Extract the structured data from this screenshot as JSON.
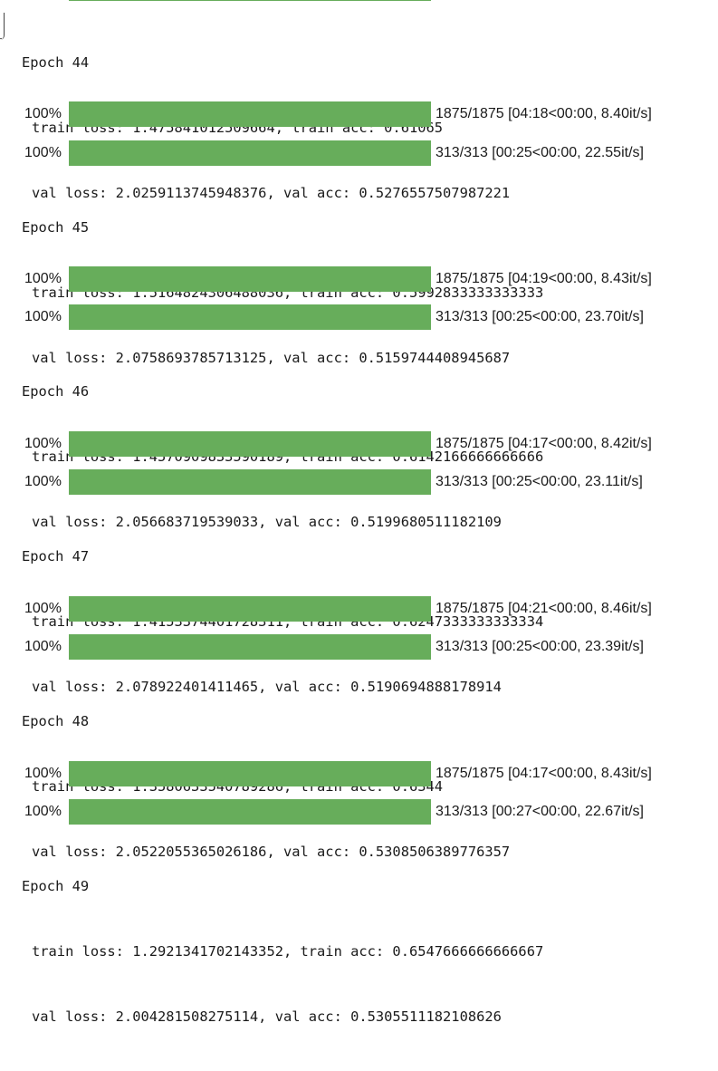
{
  "top_bar": {
    "progress": 1.0
  },
  "epochs": [
    {
      "title": "Epoch 44",
      "train": "train loss: 1.475841012509664, train acc: 0.61065",
      "val": "val loss: 2.0259113745948376, val acc: 0.5276557507987221"
    },
    {
      "title": "Epoch 45",
      "train": "train loss: 1.5164824306488036, train acc: 0.5992833333333333",
      "val": "val loss: 2.0758693785713125, val acc: 0.5159744408945687"
    },
    {
      "title": "Epoch 46",
      "train": "train loss: 1.4570909833590189, train acc: 0.6142166666666666",
      "val": "val loss: 2.056683719539033, val acc: 0.5199680511182109"
    },
    {
      "title": "Epoch 47",
      "train": "train loss: 1.4153374401728311, train acc: 0.6247333333333334",
      "val": "val loss: 2.078922401411465, val acc: 0.5190694888178914"
    },
    {
      "title": "Epoch 48",
      "train": "train loss: 1.3580633540789286, train acc: 0.6344",
      "val": "val loss: 2.0522055365026186, val acc: 0.5308506389776357"
    },
    {
      "title": "Epoch 49",
      "train": "train loss: 1.2921341702143352, train acc: 0.6547666666666667",
      "val": "val loss: 2.004281508275114, val acc: 0.5305511182108626"
    }
  ],
  "progress_rows": [
    {
      "percent": "100%",
      "progress": 1.0,
      "stats": "1875/1875 [04:18<00:00, 8.40it/s]"
    },
    {
      "percent": "100%",
      "progress": 1.0,
      "stats": "313/313 [00:25<00:00, 22.55it/s]"
    },
    {
      "percent": "100%",
      "progress": 1.0,
      "stats": "1875/1875 [04:19<00:00, 8.43it/s]"
    },
    {
      "percent": "100%",
      "progress": 1.0,
      "stats": "313/313 [00:25<00:00, 23.70it/s]"
    },
    {
      "percent": "100%",
      "progress": 1.0,
      "stats": "1875/1875 [04:17<00:00, 8.42it/s]"
    },
    {
      "percent": "100%",
      "progress": 1.0,
      "stats": "313/313 [00:25<00:00, 23.11it/s]"
    },
    {
      "percent": "100%",
      "progress": 1.0,
      "stats": "1875/1875 [04:21<00:00, 8.46it/s]"
    },
    {
      "percent": "100%",
      "progress": 1.0,
      "stats": "313/313 [00:25<00:00, 23.39it/s]"
    },
    {
      "percent": "100%",
      "progress": 1.0,
      "stats": "1875/1875 [04:17<00:00, 8.43it/s]"
    },
    {
      "percent": "100%",
      "progress": 1.0,
      "stats": "313/313 [00:27<00:00, 22.67it/s]"
    }
  ],
  "colors": {
    "bar_fill": "#67ad5b",
    "bar_track": "#e8e8e8",
    "text": "#1a1a1a"
  }
}
